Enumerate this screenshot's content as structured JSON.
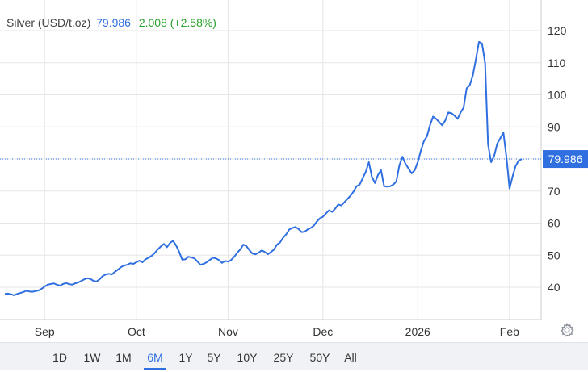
{
  "header": {
    "name": "Silver (USD/t.oz)",
    "price": "79.986",
    "change": "2.008 (+2.58%)"
  },
  "colors": {
    "line": "#2f6fe0",
    "positive": "#2aa12a",
    "grid": "#e6e6e6",
    "last_badge": "#2f6fe0"
  },
  "chart_data": {
    "type": "line",
    "title": "Silver (USD/t.oz)",
    "xlabel": "",
    "ylabel": "",
    "ylim": [
      30,
      128
    ],
    "yticks": [
      40,
      50,
      60,
      70,
      80,
      90,
      100,
      110,
      120
    ],
    "x_tick_labels": [
      {
        "label": "Sep",
        "index": 13
      },
      {
        "label": "Oct",
        "index": 43
      },
      {
        "label": "Nov",
        "index": 73
      },
      {
        "label": "Dec",
        "index": 104
      },
      {
        "label": "2026",
        "index": 135
      },
      {
        "label": "Feb",
        "index": 165
      }
    ],
    "grid": {
      "horizontal": true,
      "vertical": true
    },
    "last_value": "79.986",
    "series": [
      {
        "name": "",
        "values": [
          37.9,
          38.0,
          37.8,
          37.5,
          37.9,
          38.2,
          38.5,
          38.9,
          38.7,
          38.6,
          38.8,
          39.0,
          39.5,
          40.2,
          40.8,
          41.0,
          41.2,
          40.8,
          40.5,
          41.0,
          41.3,
          41.0,
          40.8,
          41.2,
          41.5,
          42.0,
          42.5,
          42.8,
          42.6,
          42.0,
          41.8,
          42.5,
          43.5,
          44.0,
          44.2,
          44.0,
          44.8,
          45.5,
          46.3,
          46.8,
          47.0,
          47.5,
          47.3,
          47.8,
          48.3,
          47.8,
          48.7,
          49.2,
          49.8,
          50.7,
          51.8,
          52.7,
          53.5,
          52.5,
          53.8,
          54.5,
          53.0,
          51.0,
          48.6,
          48.7,
          49.5,
          49.3,
          49.0,
          48.0,
          47.0,
          47.3,
          47.8,
          48.5,
          49.2,
          49.0,
          48.5,
          47.6,
          48.2,
          48.0,
          48.5,
          49.5,
          50.8,
          51.8,
          53.3,
          52.8,
          51.5,
          50.5,
          50.3,
          50.8,
          51.5,
          51.0,
          50.3,
          51.0,
          51.8,
          53.3,
          54.0,
          55.5,
          56.5,
          58.0,
          58.5,
          58.8,
          58.2,
          57.2,
          57.3,
          58.0,
          58.5,
          59.2,
          60.5,
          61.5,
          62.0,
          63.0,
          64.0,
          63.5,
          64.5,
          65.8,
          65.5,
          66.5,
          67.5,
          68.5,
          69.8,
          71.5,
          72.0,
          74.0,
          76.0,
          79.0,
          74.5,
          72.5,
          75.0,
          76.5,
          71.5,
          71.4,
          71.5,
          72.0,
          73.0,
          78.0,
          80.7,
          78.5,
          77.0,
          75.5,
          76.5,
          79.0,
          82.5,
          85.5,
          87.0,
          90.5,
          93.2,
          92.5,
          91.5,
          90.5,
          92.0,
          94.5,
          94.3,
          93.5,
          92.5,
          94.5,
          96.0,
          102.0,
          103.0,
          106.0,
          111.0,
          116.5,
          116.0,
          110.0,
          84.5,
          79.0,
          81.0,
          84.8,
          86.5,
          88.2,
          80.5,
          70.8,
          74.5,
          77.8,
          79.5,
          79.986
        ]
      }
    ]
  },
  "toolbar": {
    "items": [
      {
        "label": "1D",
        "active": false
      },
      {
        "label": "1W",
        "active": false
      },
      {
        "label": "1M",
        "active": false
      },
      {
        "label": "6M",
        "active": true
      },
      {
        "label": "1Y",
        "active": false
      },
      {
        "label": "5Y",
        "active": false
      },
      {
        "label": "10Y",
        "active": false
      },
      {
        "label": "25Y",
        "active": false
      },
      {
        "label": "50Y",
        "active": false
      },
      {
        "label": "All",
        "active": false
      }
    ]
  },
  "settings_icon": "gear-icon"
}
